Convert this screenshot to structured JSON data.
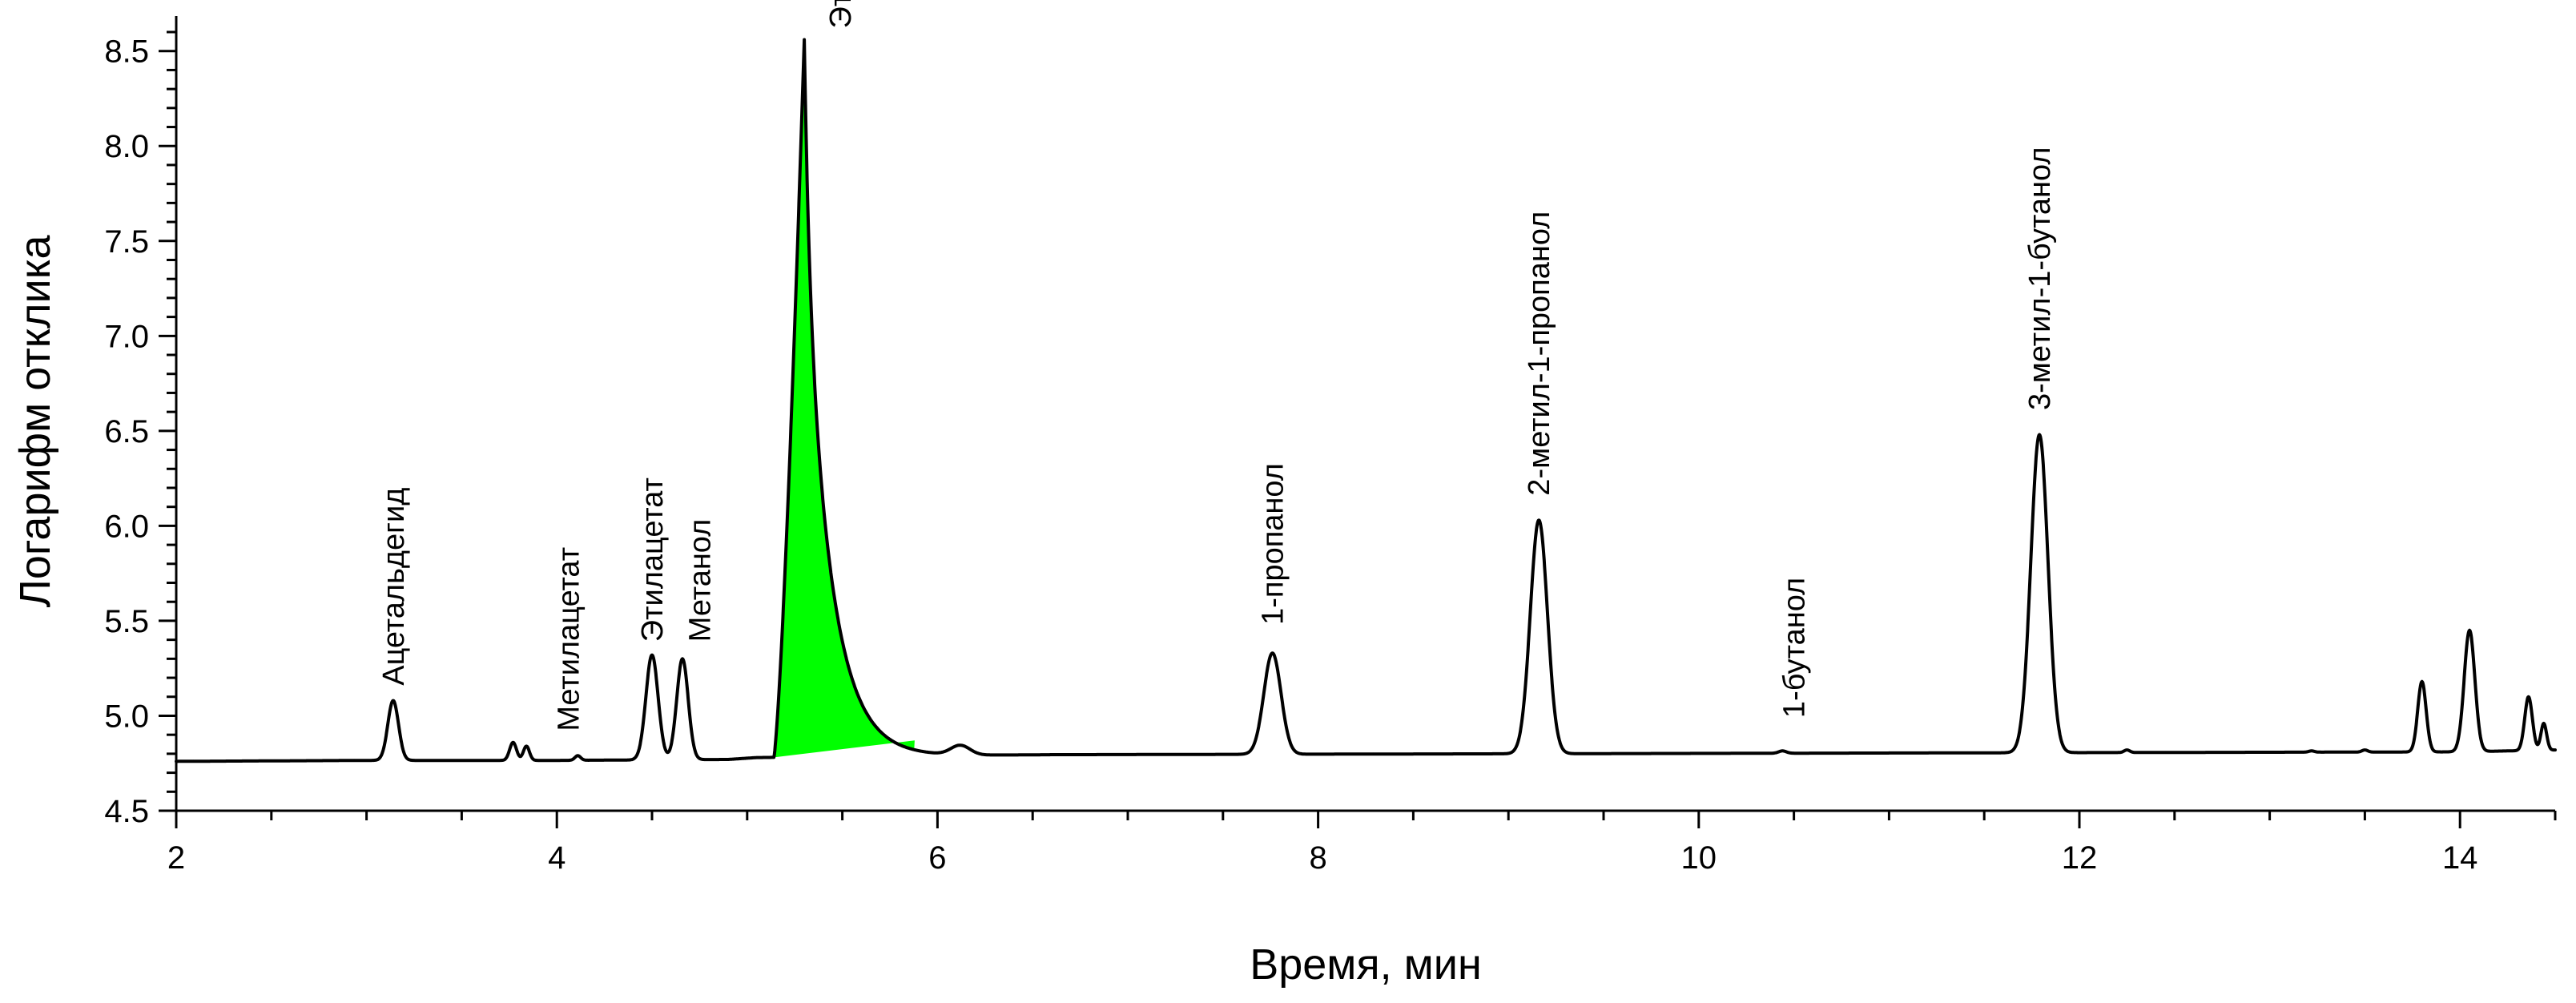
{
  "chart_data": {
    "type": "line",
    "title": "",
    "xlabel": "Время, мин",
    "ylabel": "Логарифм отклика",
    "xlim": [
      2,
      14.5
    ],
    "ylim": [
      4.5,
      8.6
    ],
    "x_ticks": [
      2,
      4,
      6,
      8,
      10,
      12,
      14
    ],
    "x_tick_labels": [
      "2",
      "4",
      "6",
      "8",
      "10",
      "12",
      "14"
    ],
    "y_ticks": [
      4.5,
      5.0,
      5.5,
      6.0,
      6.5,
      7.0,
      7.5,
      8.0,
      8.5
    ],
    "y_tick_labels": [
      "4.5",
      "5.0",
      "5.5",
      "6.0",
      "6.5",
      "7.0",
      "7.5",
      "8.0",
      "8.5"
    ],
    "grid": false,
    "line_color": "#000000",
    "highlight_color": "#00ff00",
    "baseline": [
      {
        "x": 2.0,
        "y": 4.76
      },
      {
        "x": 3.0,
        "y": 4.765
      },
      {
        "x": 4.0,
        "y": 4.765
      },
      {
        "x": 4.9,
        "y": 4.77
      },
      {
        "x": 5.05,
        "y": 4.78
      },
      {
        "x": 6.6,
        "y": 4.795
      },
      {
        "x": 14.0,
        "y": 4.81
      },
      {
        "x": 14.5,
        "y": 4.82
      }
    ],
    "peaks": [
      {
        "x": 3.14,
        "y": 5.08,
        "width": 0.028
      },
      {
        "x": 3.77,
        "y": 4.86,
        "width": 0.018
      },
      {
        "x": 3.84,
        "y": 4.84,
        "width": 0.016
      },
      {
        "x": 4.11,
        "y": 4.79,
        "width": 0.015
      },
      {
        "x": 4.5,
        "y": 5.32,
        "width": 0.032
      },
      {
        "x": 4.66,
        "y": 5.3,
        "width": 0.03
      },
      {
        "x": 6.12,
        "y": 4.84,
        "width": 0.05
      },
      {
        "x": 7.76,
        "y": 5.33,
        "width": 0.045
      },
      {
        "x": 9.16,
        "y": 6.03,
        "width": 0.045
      },
      {
        "x": 10.44,
        "y": 4.815,
        "width": 0.02
      },
      {
        "x": 11.79,
        "y": 6.48,
        "width": 0.045
      },
      {
        "x": 12.25,
        "y": 4.82,
        "width": 0.015
      },
      {
        "x": 13.22,
        "y": 4.815,
        "width": 0.015
      },
      {
        "x": 13.5,
        "y": 4.82,
        "width": 0.015
      },
      {
        "x": 13.8,
        "y": 5.18,
        "width": 0.022
      },
      {
        "x": 14.05,
        "y": 5.45,
        "width": 0.028
      },
      {
        "x": 14.36,
        "y": 5.1,
        "width": 0.02
      },
      {
        "x": 14.44,
        "y": 4.96,
        "width": 0.015
      }
    ],
    "ethanol_peak": {
      "start_x": 5.14,
      "apex_x": 5.3,
      "apex_y": 8.56,
      "end_x": 5.88,
      "end_y": 4.87,
      "tail_decay": 0.13,
      "filled": true
    },
    "annotations": [
      {
        "label": "Ацетальдегид",
        "x": 3.14,
        "y": 5.1
      },
      {
        "label": "Метилацетат",
        "x": 4.06,
        "y": 4.86
      },
      {
        "label": "Этилацетат",
        "x": 4.5,
        "y": 5.33
      },
      {
        "label": "Метанол",
        "x": 4.75,
        "y": 5.33
      },
      {
        "label": "Этанол",
        "x": 5.49,
        "y": 8.56
      },
      {
        "label": "1-пропанол",
        "x": 7.76,
        "y": 5.42
      },
      {
        "label": "2-метил-1-пропанол",
        "x": 9.16,
        "y": 6.1
      },
      {
        "label": "1-бутанол",
        "x": 10.5,
        "y": 4.93
      },
      {
        "label": "3-метил-1-бутанол",
        "x": 11.79,
        "y": 6.55
      }
    ]
  }
}
